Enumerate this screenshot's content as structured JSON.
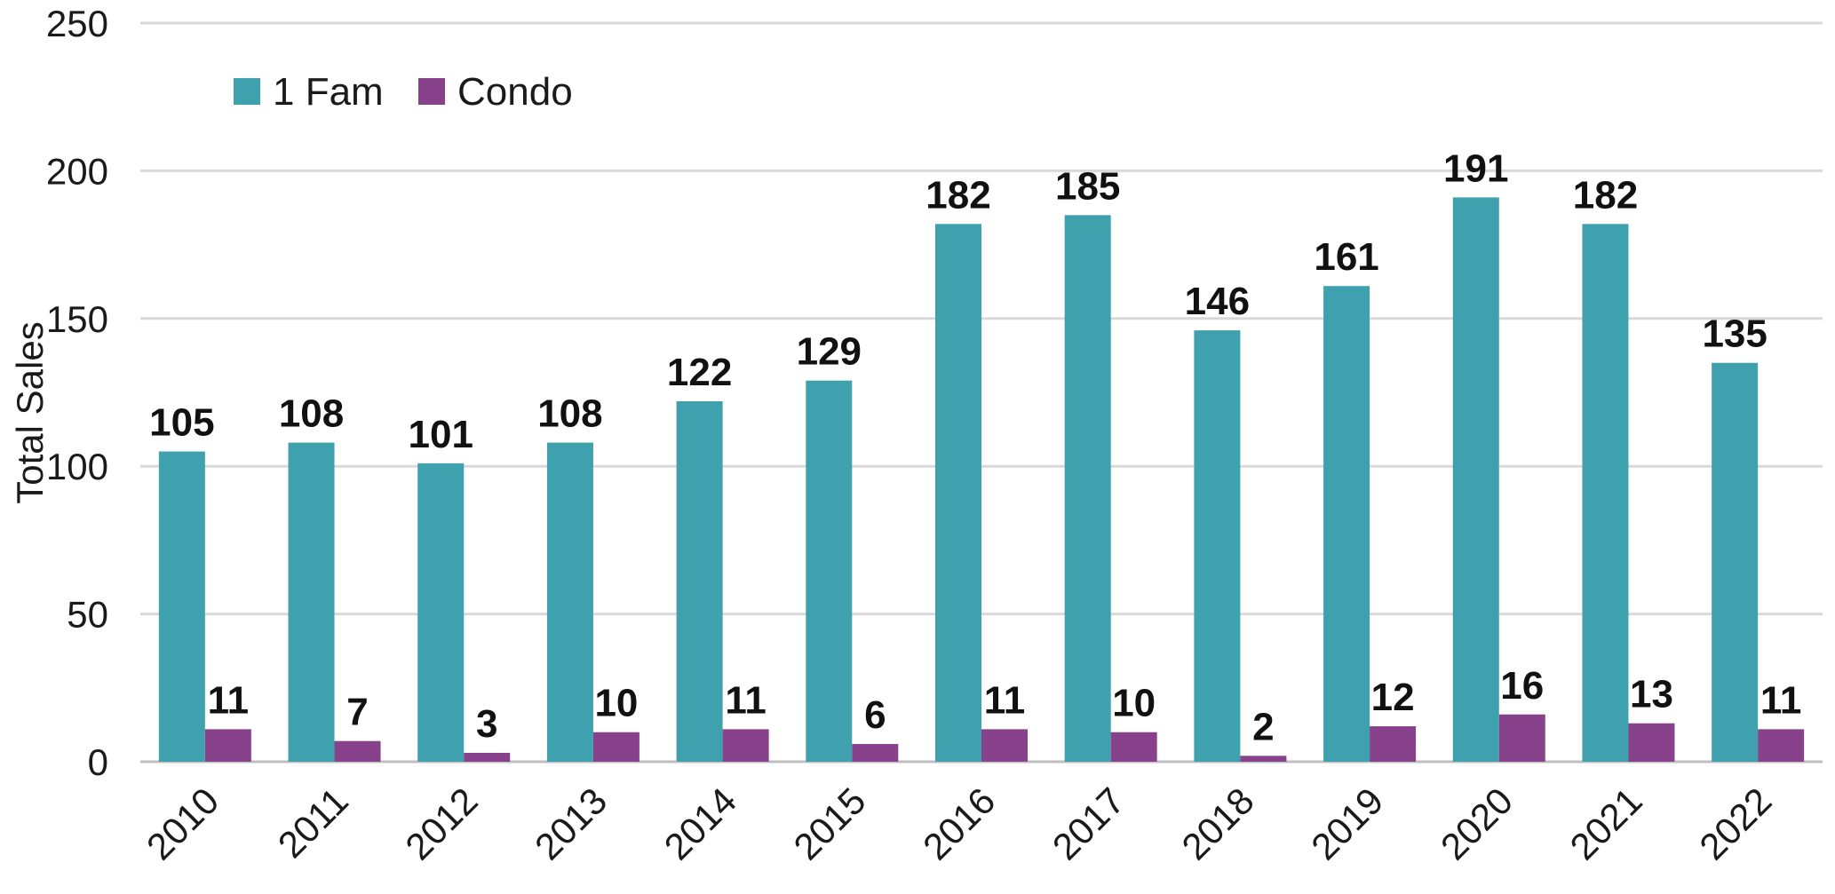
{
  "chart_data": {
    "type": "bar",
    "title": "",
    "xlabel": "",
    "ylabel": "Total Sales",
    "ylim": [
      0,
      250
    ],
    "yticks": [
      "0",
      "50",
      "100",
      "150",
      "200",
      "250"
    ],
    "grid": true,
    "legend_position": "top-left",
    "categories": [
      "2010",
      "2011",
      "2012",
      "2013",
      "2014",
      "2015",
      "2016",
      "2017",
      "2018",
      "2019",
      "2020",
      "2021",
      "2022"
    ],
    "series": [
      {
        "name": "1 Fam",
        "color": "#3fa1ae",
        "values": [
          105,
          108,
          101,
          108,
          122,
          129,
          182,
          185,
          146,
          161,
          191,
          182,
          135
        ]
      },
      {
        "name": "Condo",
        "color": "#88428c",
        "values": [
          11,
          7,
          3,
          10,
          11,
          6,
          11,
          10,
          2,
          12,
          16,
          13,
          11
        ]
      }
    ],
    "data_labels": true
  },
  "colors": {
    "gridline": "#d9d9d9",
    "axis": "#bfbfbf"
  }
}
